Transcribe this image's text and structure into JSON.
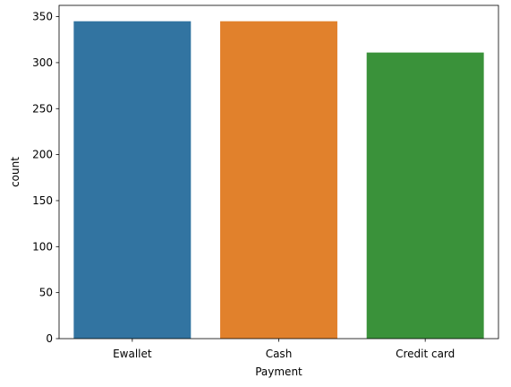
{
  "chart_data": {
    "type": "bar",
    "categories": [
      "Ewallet",
      "Cash",
      "Credit card"
    ],
    "values": [
      345,
      345,
      311
    ],
    "colors": [
      "#3274a1",
      "#e1812c",
      "#3a923a"
    ],
    "xlabel": "Payment",
    "ylabel": "count",
    "ylim": [
      0,
      362.25
    ],
    "yticks": [
      0,
      50,
      100,
      150,
      200,
      250,
      300,
      350
    ],
    "grid": false,
    "legend": "none"
  }
}
